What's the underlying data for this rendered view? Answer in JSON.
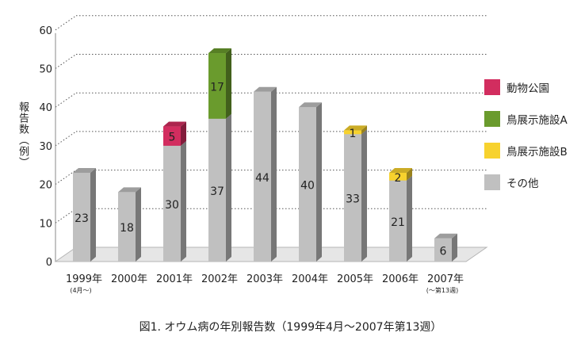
{
  "chart_data": {
    "type": "bar",
    "stacked": true,
    "three_d": true,
    "title": "",
    "ylabel": "報告数（例）",
    "ylim": [
      0,
      60
    ],
    "yticks": [
      0,
      10,
      20,
      30,
      40,
      50,
      60
    ],
    "grid": "dotted",
    "legend_position": "right",
    "categories": [
      "1999年",
      "2000年",
      "2001年",
      "2002年",
      "2003年",
      "2004年",
      "2005年",
      "2006年",
      "2007年"
    ],
    "category_notes": [
      "(4月〜)",
      "",
      "",
      "",
      "",
      "",
      "",
      "",
      "(〜第13週)"
    ],
    "series": [
      {
        "name": "その他",
        "color": "#c0c0c0",
        "values": [
          23,
          18,
          30,
          37,
          44,
          40,
          33,
          21,
          6
        ]
      },
      {
        "name": "鳥展示施設B",
        "color": "#f7d22e",
        "values": [
          0,
          0,
          0,
          0,
          0,
          0,
          1,
          2,
          0
        ]
      },
      {
        "name": "鳥展示施設A",
        "color": "#6a9b2d",
        "values": [
          0,
          0,
          0,
          17,
          0,
          0,
          0,
          0,
          0
        ]
      },
      {
        "name": "動物公園",
        "color": "#d22d5f",
        "values": [
          0,
          0,
          5,
          0,
          0,
          0,
          0,
          0,
          0
        ]
      }
    ]
  },
  "legend": [
    {
      "label": "動物公園",
      "color": "#d22d5f"
    },
    {
      "label": "鳥展示施設A",
      "color": "#6a9b2d"
    },
    {
      "label": "鳥展示施設B",
      "color": "#f7d22e"
    },
    {
      "label": "その他",
      "color": "#c0c0c0"
    }
  ],
  "caption": "図1. オウム病の年別報告数（1999年4月〜2007年第13週）"
}
